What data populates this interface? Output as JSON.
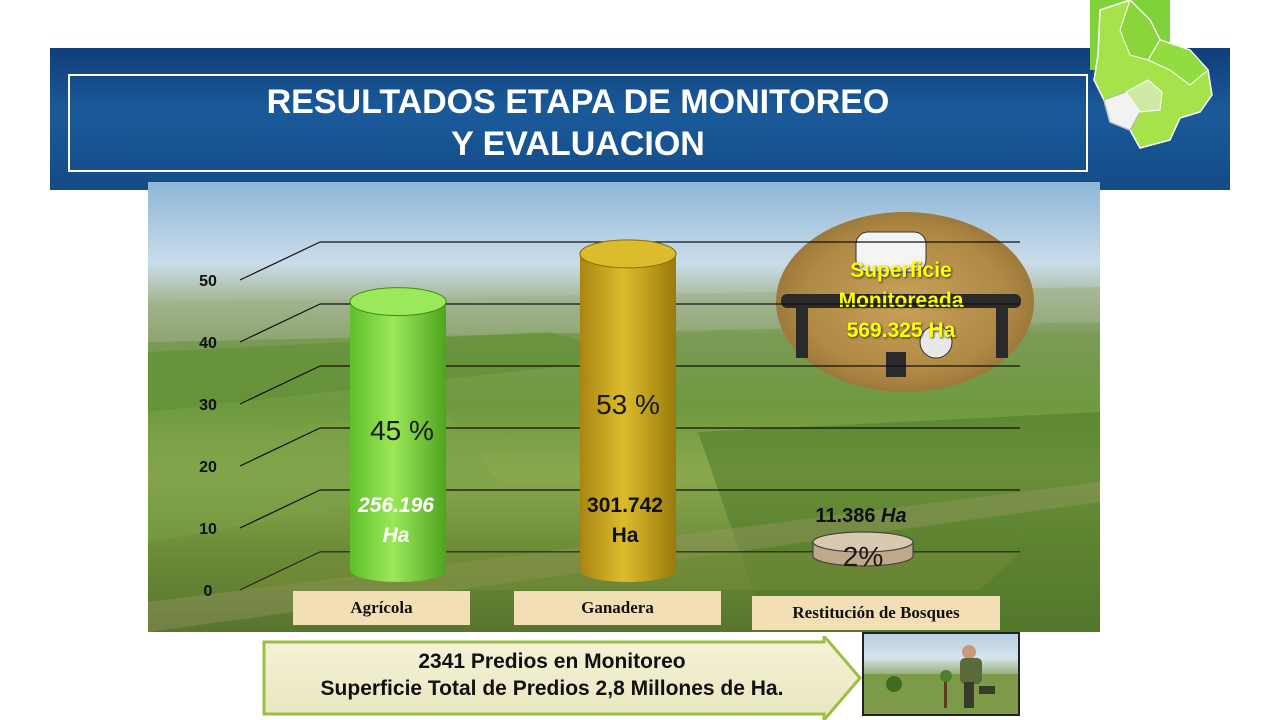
{
  "title": {
    "line1": "RESULTADOS ETAPA DE MONITOREO",
    "line2": "Y EVALUACION"
  },
  "chart_data": {
    "type": "bar",
    "categories": [
      "Agrícola",
      "Ganadera",
      "Restitución de Bosques"
    ],
    "series": [
      {
        "values": [
          45,
          53,
          2
        ]
      }
    ],
    "ylim": [
      0,
      50
    ],
    "yticks": [
      "0",
      "10",
      "20",
      "30",
      "40",
      "50"
    ],
    "percent_labels": [
      "45 %",
      "53 %",
      "2%"
    ],
    "hectare_labels": [
      {
        "value": "256.196",
        "unit": "Ha"
      },
      {
        "value": "301.742",
        "unit": "Ha"
      },
      {
        "value": "11.386",
        "unit": "Ha"
      }
    ],
    "grid": true,
    "colors": [
      "#7fd23a",
      "#c9a414",
      "#d9c9b0"
    ]
  },
  "drone_callout": {
    "line1": "Superficie",
    "line2": "Monitoreada",
    "line3": "569.325 Ha"
  },
  "footer_arrow": {
    "line1": "2341 Predios en Monitoreo",
    "line2": "Superficie Total de Predios 2,8 Millones de  Ha."
  }
}
